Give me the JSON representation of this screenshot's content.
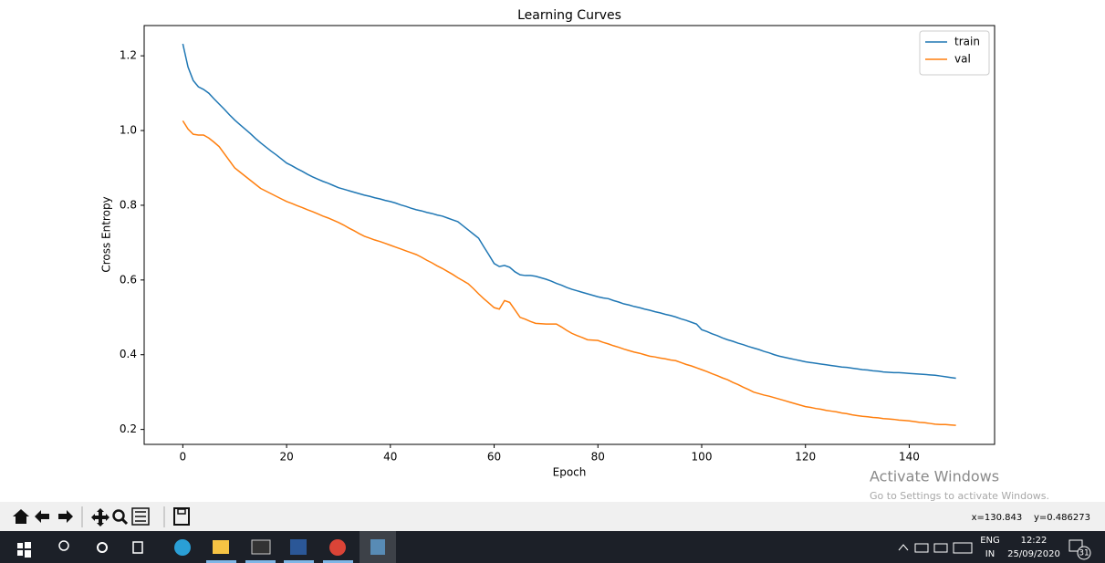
{
  "chart_data": {
    "type": "line",
    "title": "Learning Curves",
    "xlabel": "Epoch",
    "ylabel": "Cross Entropy",
    "x": [
      0,
      1,
      2,
      3,
      4,
      5,
      6,
      7,
      8,
      9,
      10,
      11,
      12,
      13,
      14,
      15,
      16,
      17,
      18,
      19,
      20,
      21,
      22,
      23,
      24,
      25,
      26,
      27,
      28,
      29,
      30,
      31,
      32,
      33,
      34,
      35,
      36,
      37,
      38,
      39,
      40,
      41,
      42,
      43,
      44,
      45,
      46,
      47,
      48,
      49,
      50,
      51,
      52,
      53,
      54,
      55,
      56,
      57,
      58,
      59,
      60,
      61,
      62,
      63,
      64,
      65,
      66,
      67,
      68,
      69,
      70,
      71,
      72,
      73,
      74,
      75,
      76,
      77,
      78,
      79,
      80,
      81,
      82,
      83,
      84,
      85,
      86,
      87,
      88,
      89,
      90,
      91,
      92,
      93,
      94,
      95,
      96,
      97,
      98,
      99,
      100,
      101,
      102,
      103,
      104,
      105,
      106,
      107,
      108,
      109,
      110,
      111,
      112,
      113,
      114,
      115,
      116,
      117,
      118,
      119,
      120,
      121,
      122,
      123,
      124,
      125,
      126,
      127,
      128,
      129,
      130,
      131,
      132,
      133,
      134,
      135,
      136,
      137,
      138,
      139,
      140,
      141,
      142,
      143,
      144,
      145,
      146,
      147,
      148,
      149
    ],
    "series": [
      {
        "name": "train",
        "color": "#1f77b4",
        "values": [
          1.232,
          1.17,
          1.134,
          1.117,
          1.11,
          1.1,
          1.085,
          1.071,
          1.057,
          1.042,
          1.028,
          1.016,
          1.004,
          0.992,
          0.979,
          0.967,
          0.956,
          0.945,
          0.935,
          0.924,
          0.913,
          0.906,
          0.898,
          0.891,
          0.883,
          0.876,
          0.87,
          0.864,
          0.859,
          0.853,
          0.847,
          0.843,
          0.839,
          0.835,
          0.831,
          0.827,
          0.824,
          0.82,
          0.817,
          0.813,
          0.81,
          0.806,
          0.801,
          0.797,
          0.792,
          0.788,
          0.785,
          0.781,
          0.778,
          0.774,
          0.771,
          0.766,
          0.761,
          0.756,
          0.745,
          0.734,
          0.723,
          0.712,
          0.689,
          0.667,
          0.644,
          0.636,
          0.639,
          0.634,
          0.622,
          0.614,
          0.612,
          0.612,
          0.61,
          0.606,
          0.602,
          0.597,
          0.591,
          0.586,
          0.58,
          0.575,
          0.571,
          0.567,
          0.563,
          0.559,
          0.555,
          0.552,
          0.55,
          0.545,
          0.541,
          0.536,
          0.533,
          0.529,
          0.526,
          0.522,
          0.519,
          0.515,
          0.512,
          0.508,
          0.505,
          0.501,
          0.496,
          0.492,
          0.487,
          0.482,
          0.467,
          0.462,
          0.456,
          0.451,
          0.445,
          0.44,
          0.436,
          0.431,
          0.427,
          0.422,
          0.418,
          0.414,
          0.409,
          0.405,
          0.4,
          0.396,
          0.393,
          0.39,
          0.387,
          0.384,
          0.381,
          0.379,
          0.377,
          0.375,
          0.373,
          0.371,
          0.369,
          0.367,
          0.366,
          0.364,
          0.362,
          0.36,
          0.359,
          0.357,
          0.356,
          0.354,
          0.353,
          0.352,
          0.352,
          0.351,
          0.35,
          0.349,
          0.348,
          0.347,
          0.346,
          0.345,
          0.343,
          0.341,
          0.339,
          0.337
        ]
      },
      {
        "name": "val",
        "color": "#ff7f0e",
        "values": [
          1.026,
          1.004,
          0.99,
          0.988,
          0.988,
          0.98,
          0.969,
          0.957,
          0.938,
          0.919,
          0.9,
          0.889,
          0.878,
          0.867,
          0.856,
          0.845,
          0.838,
          0.831,
          0.824,
          0.817,
          0.81,
          0.805,
          0.799,
          0.794,
          0.788,
          0.783,
          0.777,
          0.771,
          0.766,
          0.76,
          0.754,
          0.747,
          0.739,
          0.732,
          0.724,
          0.717,
          0.712,
          0.707,
          0.703,
          0.698,
          0.693,
          0.688,
          0.683,
          0.678,
          0.673,
          0.668,
          0.661,
          0.653,
          0.646,
          0.638,
          0.631,
          0.623,
          0.615,
          0.606,
          0.598,
          0.59,
          0.577,
          0.563,
          0.55,
          0.538,
          0.526,
          0.522,
          0.545,
          0.54,
          0.52,
          0.5,
          0.495,
          0.489,
          0.484,
          0.483,
          0.482,
          0.482,
          0.482,
          0.474,
          0.465,
          0.457,
          0.451,
          0.446,
          0.44,
          0.439,
          0.438,
          0.433,
          0.429,
          0.424,
          0.42,
          0.415,
          0.411,
          0.407,
          0.404,
          0.4,
          0.396,
          0.394,
          0.391,
          0.389,
          0.386,
          0.384,
          0.379,
          0.374,
          0.37,
          0.365,
          0.36,
          0.355,
          0.349,
          0.344,
          0.338,
          0.333,
          0.326,
          0.32,
          0.313,
          0.307,
          0.3,
          0.296,
          0.292,
          0.289,
          0.285,
          0.281,
          0.277,
          0.273,
          0.269,
          0.265,
          0.261,
          0.259,
          0.256,
          0.254,
          0.251,
          0.249,
          0.247,
          0.244,
          0.242,
          0.239,
          0.237,
          0.235,
          0.234,
          0.232,
          0.231,
          0.229,
          0.228,
          0.227,
          0.225,
          0.224,
          0.223,
          0.221,
          0.219,
          0.218,
          0.216,
          0.214,
          0.213,
          0.213,
          0.212,
          0.211
        ]
      }
    ],
    "xlim": [
      -7.45,
      156.45
    ],
    "xticks": [
      0,
      20,
      40,
      60,
      80,
      100,
      120,
      140
    ],
    "ylim": [
      0.16,
      1.281
    ],
    "yticks": [
      0.2,
      0.4,
      0.6,
      0.8,
      {
        "value": 1,
        "label": "1.0"
      },
      1.2
    ],
    "grid": false,
    "legend": "upper right"
  },
  "watermark": {
    "title": "Activate Windows",
    "subtitle": "Go to Settings to activate Windows."
  },
  "status": {
    "coords": "x=130.843    y=0.486273"
  },
  "taskbar": {
    "lang": "ENG",
    "region": "IN",
    "time": "12:22",
    "date": "25/09/2020",
    "notifications": "31"
  }
}
